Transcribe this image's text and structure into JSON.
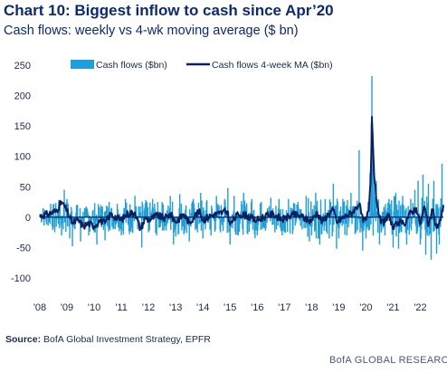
{
  "header": {
    "title": "Chart 10: Biggest inflow to cash since Apr’20",
    "subtitle": "Cash flows: weekly vs 4-wk moving average ($ bn)"
  },
  "footer": {
    "source_label": "Source:",
    "source_text": "BofA Global Investment Strategy, EPFR",
    "brand": "BofA GLOBAL RESEARC"
  },
  "colors": {
    "weekly": "#1f9fd8",
    "ma": "#0b2060",
    "zero_line": "#0b2060",
    "title": "#0b2a6f"
  },
  "chart_data": {
    "type": "bar",
    "title": "",
    "xlabel": "",
    "ylabel": "",
    "ylim": [
      -100,
      250
    ],
    "xlim": [
      2008,
      2022.85
    ],
    "yticks": [
      250,
      200,
      150,
      100,
      50,
      0,
      -50,
      -100
    ],
    "xtick_labels": [
      "'08",
      "'09",
      "'10",
      "'11",
      "'12",
      "'13",
      "'14",
      "'15",
      "'16",
      "'17",
      "'18",
      "'19",
      "'20",
      "'21",
      "'22"
    ],
    "xtick_years": [
      2008,
      2009,
      2010,
      2011,
      2012,
      2013,
      2014,
      2015,
      2016,
      2017,
      2018,
      2019,
      2020,
      2021,
      2022
    ],
    "legend": {
      "placement": "top"
    },
    "series": [
      {
        "name": "Cash flows ($bn)",
        "kind": "bar",
        "points": [
          [
            2008.0,
            5
          ],
          [
            2008.12,
            15
          ],
          [
            2008.25,
            -12
          ],
          [
            2008.4,
            22
          ],
          [
            2008.55,
            -25
          ],
          [
            2008.7,
            28
          ],
          [
            2008.8,
            -30
          ],
          [
            2008.9,
            45
          ],
          [
            2009.0,
            30
          ],
          [
            2009.1,
            -35
          ],
          [
            2009.2,
            -48
          ],
          [
            2009.35,
            20
          ],
          [
            2009.5,
            -40
          ],
          [
            2009.65,
            15
          ],
          [
            2009.8,
            -30
          ],
          [
            2010.0,
            -25
          ],
          [
            2010.1,
            -45
          ],
          [
            2010.25,
            20
          ],
          [
            2010.4,
            -38
          ],
          [
            2010.55,
            25
          ],
          [
            2010.7,
            -20
          ],
          [
            2010.85,
            22
          ],
          [
            2011.0,
            -30
          ],
          [
            2011.15,
            30
          ],
          [
            2011.3,
            -28
          ],
          [
            2011.5,
            35
          ],
          [
            2011.6,
            -20
          ],
          [
            2011.75,
            -50
          ],
          [
            2011.9,
            28
          ],
          [
            2012.0,
            -25
          ],
          [
            2012.15,
            30
          ],
          [
            2012.3,
            -30
          ],
          [
            2012.5,
            25
          ],
          [
            2012.65,
            -22
          ],
          [
            2012.8,
            35
          ],
          [
            2012.92,
            -45
          ],
          [
            2013.0,
            -32
          ],
          [
            2013.15,
            38
          ],
          [
            2013.3,
            -28
          ],
          [
            2013.5,
            -40
          ],
          [
            2013.65,
            30
          ],
          [
            2013.8,
            -25
          ],
          [
            2013.92,
            40
          ],
          [
            2014.0,
            -35
          ],
          [
            2014.15,
            28
          ],
          [
            2014.3,
            -30
          ],
          [
            2014.5,
            35
          ],
          [
            2014.65,
            -25
          ],
          [
            2014.8,
            30
          ],
          [
            2014.92,
            48
          ],
          [
            2015.0,
            -45
          ],
          [
            2015.15,
            35
          ],
          [
            2015.3,
            -30
          ],
          [
            2015.5,
            40
          ],
          [
            2015.65,
            -28
          ],
          [
            2015.8,
            30
          ],
          [
            2015.92,
            -35
          ],
          [
            2016.0,
            -30
          ],
          [
            2016.15,
            25
          ],
          [
            2016.3,
            -22
          ],
          [
            2016.5,
            32
          ],
          [
            2016.65,
            -25
          ],
          [
            2016.8,
            30
          ],
          [
            2016.92,
            -30
          ],
          [
            2017.0,
            -25
          ],
          [
            2017.15,
            30
          ],
          [
            2017.3,
            -28
          ],
          [
            2017.5,
            25
          ],
          [
            2017.65,
            -20
          ],
          [
            2017.8,
            35
          ],
          [
            2017.92,
            -40
          ],
          [
            2018.0,
            -30
          ],
          [
            2018.15,
            40
          ],
          [
            2018.3,
            -45
          ],
          [
            2018.5,
            30
          ],
          [
            2018.65,
            -35
          ],
          [
            2018.8,
            55
          ],
          [
            2018.92,
            -52
          ],
          [
            2019.0,
            -35
          ],
          [
            2019.15,
            30
          ],
          [
            2019.3,
            -30
          ],
          [
            2019.45,
            40
          ],
          [
            2019.6,
            -28
          ],
          [
            2019.75,
            110
          ],
          [
            2019.88,
            -55
          ],
          [
            2020.0,
            -35
          ],
          [
            2020.08,
            25
          ],
          [
            2020.15,
            72
          ],
          [
            2020.2,
            155
          ],
          [
            2020.22,
            232
          ],
          [
            2020.25,
            140
          ],
          [
            2020.3,
            90
          ],
          [
            2020.38,
            60
          ],
          [
            2020.5,
            -45
          ],
          [
            2020.7,
            -30
          ],
          [
            2020.85,
            30
          ],
          [
            2021.0,
            -50
          ],
          [
            2021.1,
            40
          ],
          [
            2021.2,
            -52
          ],
          [
            2021.35,
            35
          ],
          [
            2021.5,
            -45
          ],
          [
            2021.65,
            30
          ],
          [
            2021.8,
            45
          ],
          [
            2021.92,
            60
          ],
          [
            2022.0,
            -45
          ],
          [
            2022.1,
            70
          ],
          [
            2022.2,
            -62
          ],
          [
            2022.3,
            55
          ],
          [
            2022.4,
            -70
          ],
          [
            2022.5,
            60
          ],
          [
            2022.6,
            -60
          ],
          [
            2022.7,
            -45
          ],
          [
            2022.8,
            88
          ]
        ]
      },
      {
        "name": "Cash flows 4-week MA ($bn)",
        "kind": "line",
        "points": [
          [
            2008.0,
            2
          ],
          [
            2008.3,
            5
          ],
          [
            2008.6,
            10
          ],
          [
            2008.8,
            25
          ],
          [
            2009.0,
            10
          ],
          [
            2009.2,
            -10
          ],
          [
            2009.4,
            -5
          ],
          [
            2009.6,
            -15
          ],
          [
            2009.8,
            -10
          ],
          [
            2010.0,
            -15
          ],
          [
            2010.2,
            -5
          ],
          [
            2010.4,
            -10
          ],
          [
            2010.6,
            5
          ],
          [
            2010.8,
            0
          ],
          [
            2011.0,
            -5
          ],
          [
            2011.2,
            5
          ],
          [
            2011.5,
            8
          ],
          [
            2011.7,
            -20
          ],
          [
            2011.9,
            0
          ],
          [
            2012.0,
            -5
          ],
          [
            2012.3,
            3
          ],
          [
            2012.6,
            -2
          ],
          [
            2012.8,
            5
          ],
          [
            2013.0,
            -8
          ],
          [
            2013.3,
            5
          ],
          [
            2013.5,
            -10
          ],
          [
            2013.7,
            3
          ],
          [
            2013.9,
            8
          ],
          [
            2014.0,
            -5
          ],
          [
            2014.3,
            3
          ],
          [
            2014.6,
            6
          ],
          [
            2014.9,
            10
          ],
          [
            2015.0,
            -12
          ],
          [
            2015.3,
            5
          ],
          [
            2015.6,
            3
          ],
          [
            2015.9,
            -5
          ],
          [
            2016.0,
            -5
          ],
          [
            2016.3,
            2
          ],
          [
            2016.6,
            5
          ],
          [
            2016.9,
            -4
          ],
          [
            2017.0,
            -3
          ],
          [
            2017.3,
            4
          ],
          [
            2017.6,
            2
          ],
          [
            2017.9,
            -6
          ],
          [
            2018.0,
            -5
          ],
          [
            2018.2,
            8
          ],
          [
            2018.4,
            -8
          ],
          [
            2018.6,
            5
          ],
          [
            2018.8,
            12
          ],
          [
            2018.95,
            -10
          ],
          [
            2019.0,
            -5
          ],
          [
            2019.3,
            3
          ],
          [
            2019.5,
            8
          ],
          [
            2019.75,
            22
          ],
          [
            2019.9,
            -8
          ],
          [
            2020.0,
            -5
          ],
          [
            2020.1,
            10
          ],
          [
            2020.17,
            55
          ],
          [
            2020.2,
            110
          ],
          [
            2020.22,
            165
          ],
          [
            2020.25,
            130
          ],
          [
            2020.3,
            70
          ],
          [
            2020.4,
            25
          ],
          [
            2020.55,
            -10
          ],
          [
            2020.7,
            -8
          ],
          [
            2020.85,
            5
          ],
          [
            2021.0,
            -20
          ],
          [
            2021.2,
            -8
          ],
          [
            2021.4,
            -12
          ],
          [
            2021.6,
            5
          ],
          [
            2021.85,
            15
          ],
          [
            2022.0,
            -12
          ],
          [
            2022.15,
            18
          ],
          [
            2022.3,
            -15
          ],
          [
            2022.45,
            12
          ],
          [
            2022.6,
            -18
          ],
          [
            2022.75,
            -5
          ],
          [
            2022.85,
            20
          ]
        ]
      }
    ]
  }
}
